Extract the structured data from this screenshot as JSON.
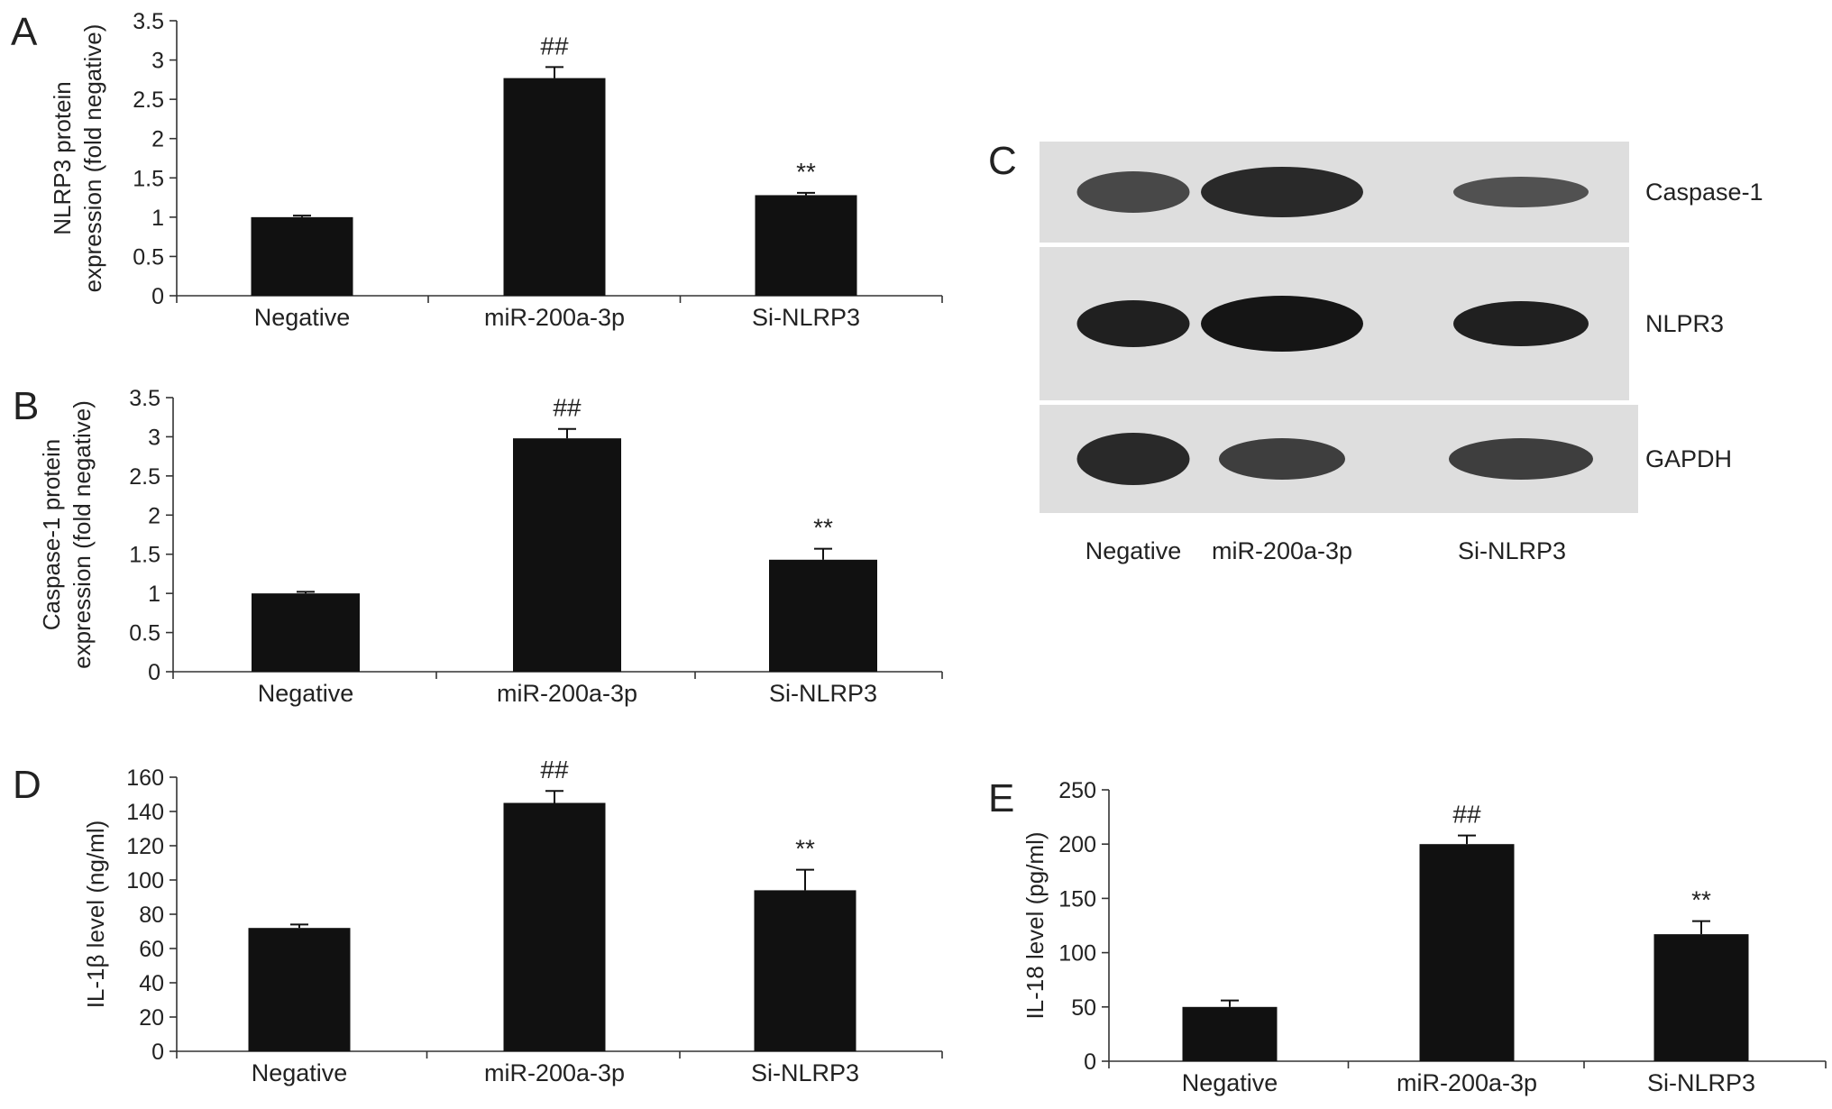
{
  "colors": {
    "bar": "#111111",
    "axis": "#333333",
    "text": "#222222",
    "blot_bg": "#dedede",
    "band": "#151515"
  },
  "chart_data": [
    {
      "panel": "A",
      "type": "bar",
      "categories": [
        "Negative",
        "miR-200a-3p",
        "Si-NLRP3"
      ],
      "values": [
        1.0,
        2.77,
        1.28
      ],
      "errors": [
        0.02,
        0.14,
        0.03
      ],
      "annotations": [
        "",
        "##",
        "**"
      ],
      "ylabel_lines": [
        "NLRP3 protein",
        "expression (fold negative)"
      ],
      "ylim": [
        0,
        3.5
      ],
      "yticks": [
        "0",
        "0.5",
        "1",
        "1.5",
        "2",
        "2.5",
        "3",
        "3.5"
      ],
      "grid": false
    },
    {
      "panel": "B",
      "type": "bar",
      "categories": [
        "Negative",
        "miR-200a-3p",
        "Si-NLRP3"
      ],
      "values": [
        1.0,
        2.98,
        1.43
      ],
      "errors": [
        0.02,
        0.12,
        0.14
      ],
      "annotations": [
        "",
        "##",
        "**"
      ],
      "ylabel_lines": [
        "Caspase-1 protein",
        "expression (fold negative)"
      ],
      "ylim": [
        0,
        3.5
      ],
      "yticks": [
        "0",
        "0.5",
        "1",
        "1.5",
        "2",
        "2.5",
        "3",
        "3.5"
      ],
      "grid": false
    },
    {
      "panel": "D",
      "type": "bar",
      "categories": [
        "Negative",
        "miR-200a-3p",
        "Si-NLRP3"
      ],
      "values": [
        72,
        145,
        94
      ],
      "errors": [
        2,
        7,
        12
      ],
      "annotations": [
        "",
        "##",
        "**"
      ],
      "ylabel_lines": [
        "IL-1β level (ng/ml)"
      ],
      "ylim": [
        0,
        160
      ],
      "yticks": [
        "0",
        "20",
        "40",
        "60",
        "80",
        "100",
        "120",
        "140",
        "160"
      ],
      "grid": false
    },
    {
      "panel": "E",
      "type": "bar",
      "categories": [
        "Negative",
        "miR-200a-3p",
        "Si-NLRP3"
      ],
      "values": [
        50,
        200,
        117
      ],
      "errors": [
        6,
        8,
        12
      ],
      "annotations": [
        "",
        "##",
        "**"
      ],
      "ylabel_lines": [
        "IL-18 level (pg/ml)"
      ],
      "ylim": [
        0,
        250
      ],
      "yticks": [
        "0",
        "50",
        "100",
        "150",
        "200",
        "250"
      ],
      "grid": false
    }
  ],
  "blot": {
    "panel": "C",
    "rows": [
      {
        "label": "Caspase-1",
        "intensities": [
          0.75,
          0.9,
          0.7
        ]
      },
      {
        "label": "NLPR3",
        "intensities": [
          0.95,
          1.0,
          0.95
        ]
      },
      {
        "label": "GAPDH",
        "intensities": [
          0.9,
          0.8,
          0.8
        ]
      }
    ],
    "lanes": [
      "Negative",
      "miR-200a-3p",
      "Si-NLRP3"
    ]
  }
}
